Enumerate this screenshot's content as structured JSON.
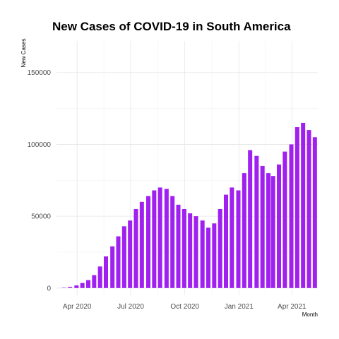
{
  "chart_data": {
    "type": "bar",
    "title": "New Cases of COVID-19 in South America",
    "xlabel": "Month",
    "ylabel": "New Cases",
    "x_start_date": "2020-02-26",
    "x_end_date": "2021-05-15",
    "x_ticks": [
      {
        "date": "2020-04-01",
        "label": "Apr 2020"
      },
      {
        "date": "2020-07-01",
        "label": "Jul 2020"
      },
      {
        "date": "2020-10-01",
        "label": "Oct 2020"
      },
      {
        "date": "2021-01-01",
        "label": "Jan 2021"
      },
      {
        "date": "2021-04-01",
        "label": "Apr 2021"
      }
    ],
    "y_ticks": [
      0,
      50000,
      100000,
      150000
    ],
    "y_tick_labels": [
      "0",
      "50000",
      "100000",
      "150000"
    ],
    "ylim": [
      -5000,
      172000
    ],
    "grid": true,
    "legend": "none",
    "bar_color": "#A020F0",
    "series": [
      {
        "date": [
          "2020-03-10",
          "2020-03-20",
          "2020-03-31",
          "2020-04-10",
          "2020-04-20",
          "2020-04-30",
          "2020-05-10",
          "2020-05-20",
          "2020-05-31",
          "2020-06-10",
          "2020-06-20",
          "2020-06-30",
          "2020-07-10",
          "2020-07-20",
          "2020-07-31",
          "2020-08-10",
          "2020-08-20",
          "2020-08-31",
          "2020-09-10",
          "2020-09-20",
          "2020-09-30",
          "2020-10-10",
          "2020-10-20",
          "2020-10-31",
          "2020-11-10",
          "2020-11-20",
          "2020-11-30",
          "2020-12-10",
          "2020-12-20",
          "2020-12-31",
          "2021-01-10",
          "2021-01-20",
          "2021-01-31",
          "2021-02-10",
          "2021-02-20",
          "2021-02-28",
          "2021-03-10",
          "2021-03-20",
          "2021-03-31",
          "2021-04-10",
          "2021-04-20",
          "2021-04-30",
          "2021-05-10"
        ],
        "values": [
          200,
          700,
          1800,
          3500,
          5500,
          9000,
          15000,
          22000,
          29000,
          36000,
          43000,
          47000,
          55000,
          60000,
          64000,
          68000,
          70000,
          69000,
          64000,
          58000,
          55000,
          52000,
          50000,
          47000,
          42000,
          45000,
          55000,
          65000,
          70000,
          68000,
          80000,
          96000,
          92000,
          85000,
          80000,
          78000,
          86000,
          95000,
          100000,
          112000,
          115000,
          110000,
          105000
        ]
      }
    ]
  }
}
